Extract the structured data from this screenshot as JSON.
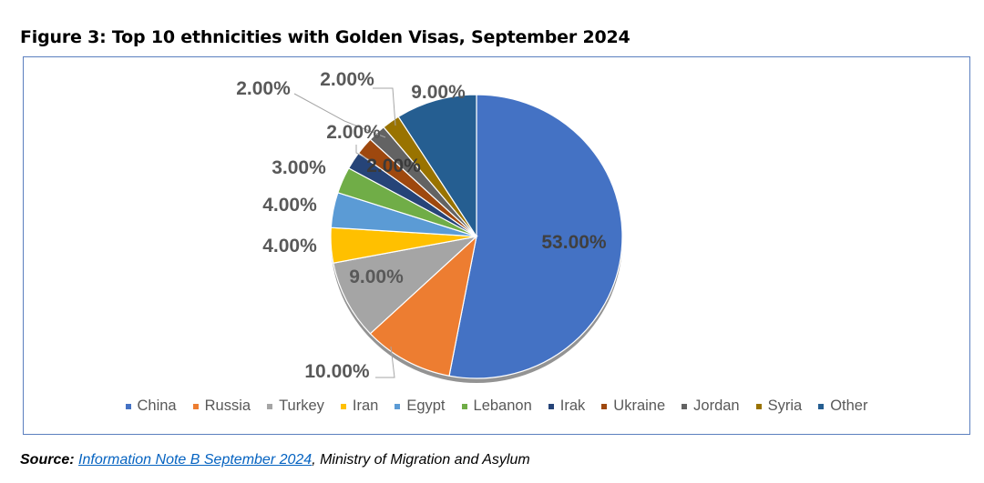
{
  "figure": {
    "title": "Figure 3: Top 10 ethnicities with Golden Visas, September 2024"
  },
  "chart_data": {
    "type": "pie",
    "title": "Figure 3: Top 10 ethnicities with Golden Visas, September 2024",
    "legend_position": "bottom",
    "slices": [
      {
        "name": "China",
        "value": 53,
        "label": "53.00%",
        "color": "#4472c4"
      },
      {
        "name": "Russia",
        "value": 10,
        "label": "10.00%",
        "color": "#ed7d31"
      },
      {
        "name": "Turkey",
        "value": 9,
        "label": "9.00%",
        "color": "#a5a5a5"
      },
      {
        "name": "Iran",
        "value": 4,
        "label": "4.00%",
        "color": "#ffc000"
      },
      {
        "name": "Egypt",
        "value": 4,
        "label": "4.00%",
        "color": "#5b9bd5"
      },
      {
        "name": "Lebanon",
        "value": 3,
        "label": "3.00%",
        "color": "#70ad47"
      },
      {
        "name": "Irak",
        "value": 2,
        "label": "2.00%",
        "color": "#264478"
      },
      {
        "name": "Ukraine",
        "value": 2,
        "label": "2.00%",
        "color": "#9e480e"
      },
      {
        "name": "Jordan",
        "value": 2,
        "label": "2.00%",
        "color": "#636363"
      },
      {
        "name": "Syria",
        "value": 2,
        "label": "2.00%",
        "color": "#997300"
      },
      {
        "name": "Other",
        "value": 9,
        "label": "9.00%",
        "color": "#255e91"
      }
    ]
  },
  "source": {
    "prefix": "Source:",
    "link_text": "Information Note B September 2024",
    "suffix": ", Ministry of Migration and Asylum"
  }
}
